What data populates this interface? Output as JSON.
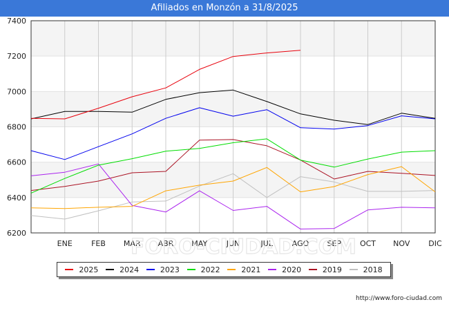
{
  "header": {
    "title": "Afiliados en Monzón a 31/8/2025"
  },
  "footer": {
    "url": "http://www.foro-ciudad.com"
  },
  "watermark": "FORO-CIUDAD.COM",
  "chart_data": {
    "type": "line",
    "title": "Afiliados en Monzón a 31/8/2025",
    "xlabel": "",
    "ylabel": "",
    "categories": [
      "",
      "ENE",
      "FEB",
      "MAR",
      "ABR",
      "MAY",
      "JUN",
      "JUL",
      "AGO",
      "SEP",
      "OCT",
      "NOV",
      "DIC"
    ],
    "ylim": [
      6200,
      7400
    ],
    "yticks": [
      6200,
      6400,
      6600,
      6800,
      7000,
      7200,
      7400
    ],
    "grid": true,
    "legend_position": "bottom",
    "series": [
      {
        "name": "2025",
        "color": "#e8000b",
        "values": [
          6848,
          6845,
          6905,
          6970,
          7020,
          7125,
          7198,
          7218,
          7233,
          null,
          null,
          null,
          null
        ]
      },
      {
        "name": "2024",
        "color": "#000000",
        "values": [
          6845,
          6887,
          6887,
          6883,
          6955,
          6993,
          7008,
          6943,
          6873,
          6837,
          6813,
          6877,
          6848
        ]
      },
      {
        "name": "2023",
        "color": "#0000ee",
        "values": [
          6665,
          6615,
          6688,
          6760,
          6848,
          6908,
          6860,
          6897,
          6795,
          6787,
          6807,
          6862,
          6845
        ]
      },
      {
        "name": "2022",
        "color": "#00dd00",
        "values": [
          6425,
          6508,
          6583,
          6620,
          6662,
          6678,
          6710,
          6732,
          6612,
          6572,
          6618,
          6657,
          6665
        ]
      },
      {
        "name": "2021",
        "color": "#ffa500",
        "values": [
          6342,
          6338,
          6345,
          6350,
          6438,
          6470,
          6493,
          6570,
          6432,
          6462,
          6530,
          6575,
          6432
        ]
      },
      {
        "name": "2020",
        "color": "#aa22ee",
        "values": [
          6523,
          6543,
          6590,
          6355,
          6318,
          6438,
          6327,
          6350,
          6222,
          6225,
          6330,
          6345,
          6342
        ]
      },
      {
        "name": "2019",
        "color": "#aa1122",
        "values": [
          6440,
          6463,
          6493,
          6540,
          6548,
          6725,
          6728,
          6693,
          6612,
          6505,
          6548,
          6537,
          6525
        ]
      },
      {
        "name": "2018",
        "color": "#c0c0c0",
        "values": [
          6298,
          6278,
          6325,
          6375,
          6380,
          6465,
          6535,
          6400,
          6518,
          6488,
          6435,
          6435,
          6440
        ]
      }
    ]
  }
}
